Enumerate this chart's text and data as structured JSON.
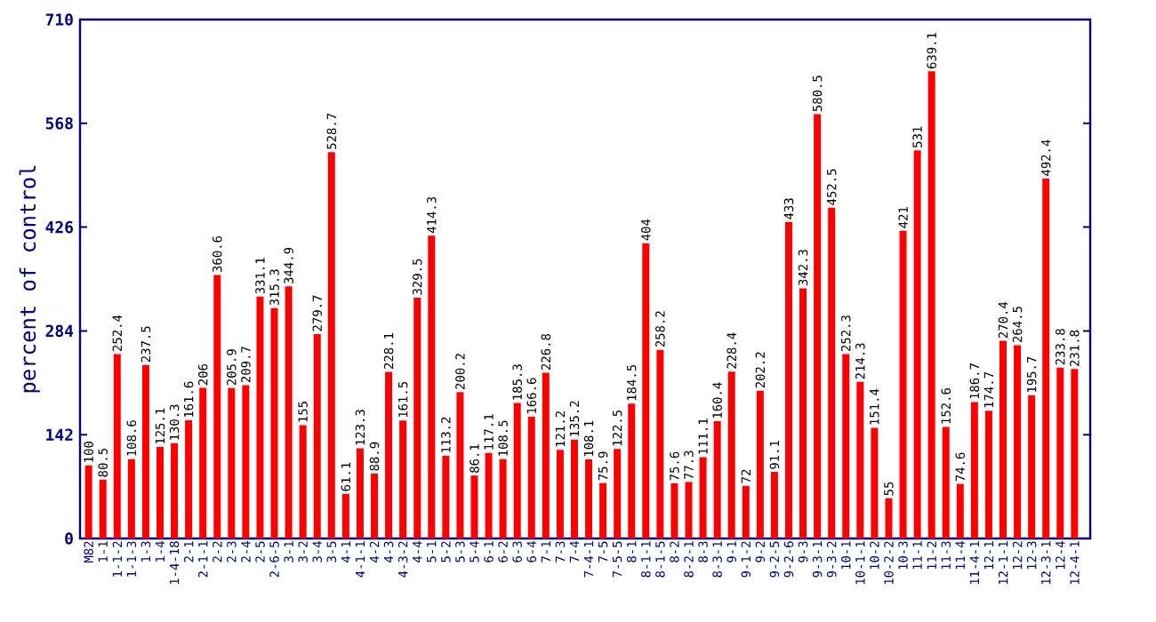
{
  "chart_data": {
    "type": "bar",
    "ylabel": "percent of control",
    "categories": [
      "M82",
      "1-1",
      "1-1-2",
      "1-1-3",
      "1-3",
      "1-4",
      "1-4-18",
      "2-1",
      "2-1-1",
      "2-2",
      "2-3",
      "2-4",
      "2-5",
      "2-6-5",
      "3-1",
      "3-2",
      "3-4",
      "3-5",
      "4-1",
      "4-1-1",
      "4-2",
      "4-3",
      "4-3-2",
      "4-4",
      "5-1",
      "5-2",
      "5-3",
      "5-4",
      "6-1",
      "6-2",
      "6-3",
      "6-4",
      "7-1",
      "7-3",
      "7-4",
      "7-4-1",
      "7-5",
      "7-5-5",
      "8-1",
      "8-1-1",
      "8-1-5",
      "8-2",
      "8-2-1",
      "8-3",
      "8-3-1",
      "9-1",
      "9-1-2",
      "9-2",
      "9-2-5",
      "9-2-6",
      "9-3",
      "9-3-1",
      "9-3-2",
      "10-1",
      "10-1-1",
      "10-2",
      "10-2-2",
      "10-3",
      "11-1",
      "11-2",
      "11-3",
      "11-4",
      "11-4-1",
      "12-1",
      "12-1-1",
      "12-2",
      "12-3",
      "12-3-1",
      "12-4",
      "12-4-1"
    ],
    "values": [
      100,
      80.5,
      252.4,
      108.6,
      237.5,
      125.1,
      130.3,
      161.6,
      206,
      360.6,
      205.9,
      209.7,
      331.1,
      315.3,
      344.9,
      155,
      279.7,
      528.7,
      61.1,
      123.3,
      88.9,
      228.1,
      161.5,
      329.5,
      414.3,
      113.2,
      200.2,
      86.1,
      117.1,
      108.5,
      185.3,
      166.6,
      226.8,
      121.2,
      135.2,
      108.1,
      75.9,
      122.5,
      184.5,
      404,
      258.2,
      75.6,
      77.3,
      111.1,
      160.4,
      228.4,
      72,
      202.2,
      91.1,
      433,
      342.3,
      580.5,
      452.5,
      252.3,
      214.3,
      151.4,
      55,
      421,
      531,
      639.1,
      152.6,
      74.6,
      186.7,
      174.7,
      270.4,
      264.5,
      195.7,
      492.4,
      233.8,
      231.8
    ],
    "color": "#ff0000",
    "data_labels": true,
    "ylim": [
      0,
      710
    ],
    "yticks": [
      0,
      142,
      284,
      426,
      568,
      710
    ]
  }
}
